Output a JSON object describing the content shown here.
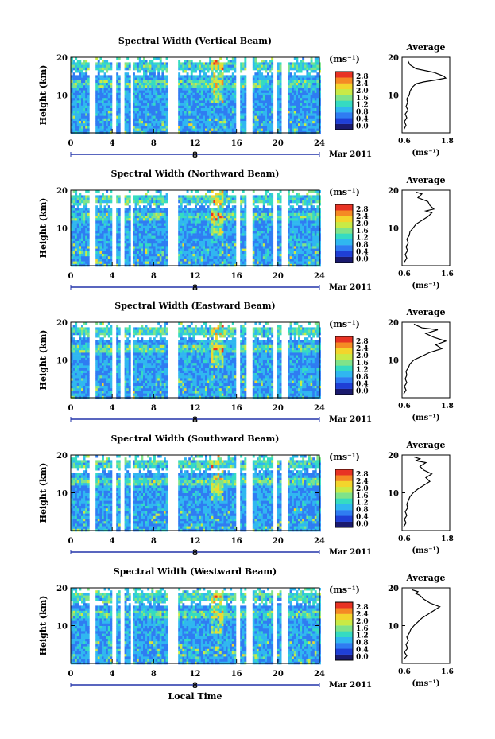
{
  "figure": {
    "date_label": "Mar 2011",
    "date_marker": "8",
    "xlabel_bottom": "Local Time"
  },
  "colorbar": {
    "unit_label": "(ms⁻¹)",
    "tick_labels": [
      "0.0",
      "0.4",
      "0.8",
      "1.2",
      "1.6",
      "2.0",
      "2.4",
      "2.8"
    ],
    "colors": [
      "#1a1a6e",
      "#1f3fd6",
      "#2f7cf2",
      "#30b7f0",
      "#35dbc2",
      "#7fe38a",
      "#c9ea46",
      "#f3d52c",
      "#f58a24",
      "#e83324"
    ]
  },
  "chart_data": [
    {
      "type": "heatmap",
      "title": "Spectral Width (Vertical Beam)",
      "xlabel": "",
      "ylabel": "Height (km)",
      "xlim": [
        0,
        24
      ],
      "ylim": [
        0,
        20
      ],
      "xticks": [
        0,
        4,
        8,
        12,
        16,
        20,
        24
      ],
      "yticks": [
        10,
        20
      ],
      "colorbar_range": [
        0.0,
        2.8
      ],
      "average_profile": {
        "title": "Average",
        "xlabel": "(ms⁻¹)",
        "xticks": [
          "0.6",
          "1.8"
        ],
        "yticks": [
          10,
          20
        ],
        "x": [
          0.65,
          0.7,
          0.66,
          0.72,
          0.68,
          0.75,
          0.7,
          0.74,
          0.72,
          0.78,
          0.8,
          0.85,
          0.95,
          1.15,
          1.45,
          1.7,
          1.65,
          1.4,
          0.95,
          0.8,
          0.75
        ],
        "y": [
          1,
          2,
          3,
          4,
          5,
          6,
          7,
          8,
          9,
          10,
          11,
          12,
          13,
          13.5,
          14,
          14.5,
          15,
          16,
          17,
          18,
          19
        ]
      }
    },
    {
      "type": "heatmap",
      "title": "Spectral Width (Northward Beam)",
      "xlabel": "",
      "ylabel": "Height (km)",
      "xlim": [
        0,
        24
      ],
      "ylim": [
        0,
        20
      ],
      "xticks": [
        0,
        4,
        8,
        12,
        16,
        20,
        24
      ],
      "yticks": [
        10,
        20
      ],
      "colorbar_range": [
        0.0,
        2.8
      ],
      "average_profile": {
        "title": "Average",
        "xlabel": "(ms⁻¹)",
        "xticks": [
          "0.6",
          "1.6"
        ],
        "yticks": [
          10,
          20
        ],
        "x": [
          0.66,
          0.72,
          0.68,
          0.74,
          0.7,
          0.76,
          0.72,
          0.78,
          0.8,
          0.88,
          0.95,
          1.1,
          1.25,
          1.35,
          1.2,
          1.4,
          1.3,
          1.25,
          1.0,
          1.1,
          0.95
        ],
        "y": [
          1,
          2,
          3,
          4,
          5,
          6,
          7,
          8,
          9,
          10,
          11,
          12,
          13,
          14,
          14.5,
          15,
          16,
          17,
          18,
          19,
          19.5
        ]
      }
    },
    {
      "type": "heatmap",
      "title": "Spectral Width (Eastward Beam)",
      "xlabel": "",
      "ylabel": "Height (km)",
      "xlim": [
        0,
        24
      ],
      "ylim": [
        0,
        20
      ],
      "xticks": [
        0,
        4,
        8,
        12,
        16,
        20,
        24
      ],
      "yticks": [
        10,
        20
      ],
      "colorbar_range": [
        0.0,
        2.8
      ],
      "average_profile": {
        "title": "Average",
        "xlabel": "(ms⁻¹)",
        "xticks": [
          "0.6",
          "1.8"
        ],
        "yticks": [
          10,
          20
        ],
        "x": [
          0.64,
          0.7,
          0.66,
          0.72,
          0.68,
          0.72,
          0.7,
          0.76,
          0.8,
          0.9,
          1.1,
          1.3,
          1.6,
          1.45,
          1.7,
          1.4,
          1.2,
          1.5,
          1.1,
          1.0,
          0.9
        ],
        "y": [
          1,
          2,
          3,
          4,
          5,
          6,
          7,
          8,
          9,
          10,
          11,
          12,
          13,
          14,
          15,
          16,
          17,
          18,
          18.5,
          19,
          19.5
        ]
      }
    },
    {
      "type": "heatmap",
      "title": "Spectral Width (Southward Beam)",
      "xlabel": "",
      "ylabel": "Height (km)",
      "xlim": [
        0,
        24
      ],
      "ylim": [
        0,
        20
      ],
      "xticks": [
        0,
        4,
        8,
        12,
        16,
        20,
        24
      ],
      "yticks": [
        10,
        20
      ],
      "colorbar_range": [
        0.0,
        2.8
      ],
      "average_profile": {
        "title": "Average",
        "xlabel": "(ms⁻¹)",
        "xticks": [
          "0.6",
          "1.8"
        ],
        "yticks": [
          10,
          20
        ],
        "x": [
          0.64,
          0.7,
          0.66,
          0.72,
          0.68,
          0.74,
          0.72,
          0.76,
          0.8,
          0.88,
          1.0,
          1.15,
          1.3,
          1.2,
          1.35,
          1.15,
          1.05,
          1.2,
          0.95,
          1.05,
          0.9
        ],
        "y": [
          1,
          2,
          3,
          4,
          5,
          6,
          7,
          8,
          9,
          10,
          11,
          12,
          13,
          14,
          15,
          16,
          17,
          18,
          18.5,
          19,
          19.5
        ]
      }
    },
    {
      "type": "heatmap",
      "title": "Spectral Width (Westward Beam)",
      "xlabel": "",
      "ylabel": "Height (km)",
      "xlim": [
        0,
        24
      ],
      "ylim": [
        0,
        20
      ],
      "xticks": [
        0,
        4,
        8,
        12,
        16,
        20,
        24
      ],
      "yticks": [
        10,
        20
      ],
      "colorbar_range": [
        0.0,
        2.8
      ],
      "average_profile": {
        "title": "Average",
        "xlabel": "(ms⁻¹)",
        "xticks": [
          "0.6",
          "1.6"
        ],
        "yticks": [
          10,
          20
        ],
        "x": [
          0.64,
          0.72,
          0.66,
          0.74,
          0.7,
          0.76,
          0.72,
          0.78,
          0.82,
          0.9,
          1.0,
          1.1,
          1.25,
          1.4,
          1.55,
          1.3,
          1.15,
          1.05,
          0.95,
          1.0,
          0.85
        ],
        "y": [
          1,
          2,
          3,
          4,
          5,
          6,
          7,
          8,
          9,
          10,
          11,
          12,
          13,
          14,
          15,
          16,
          17,
          18,
          18.5,
          19,
          19.5
        ]
      }
    }
  ]
}
